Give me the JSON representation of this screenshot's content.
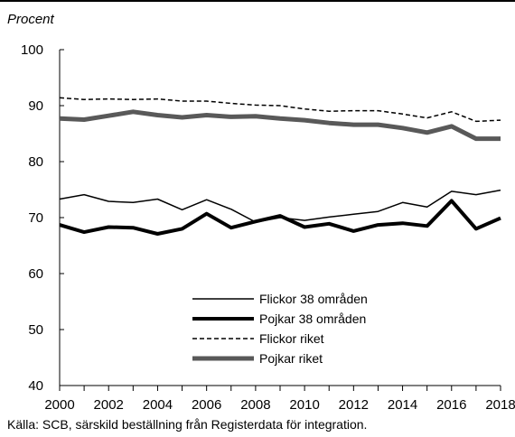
{
  "chart_data": {
    "type": "line",
    "title": "",
    "ylabel": "Procent",
    "xlabel": "",
    "ylim": [
      40,
      100
    ],
    "yticks": [
      40,
      50,
      60,
      70,
      80,
      90,
      100
    ],
    "xlim": [
      2000,
      2018
    ],
    "xticks": [
      2000,
      2002,
      2004,
      2006,
      2008,
      2010,
      2012,
      2014,
      2016,
      2018
    ],
    "x": [
      2000,
      2001,
      2002,
      2003,
      2004,
      2005,
      2006,
      2007,
      2008,
      2009,
      2010,
      2011,
      2012,
      2013,
      2014,
      2015,
      2016,
      2017,
      2018
    ],
    "legend_position": "bottom-center",
    "grid": false,
    "series": [
      {
        "name": "Flickor 38 områden",
        "style": "thin-solid",
        "color": "#000000",
        "values": [
          73.3,
          74.1,
          72.9,
          72.7,
          73.3,
          71.4,
          73.2,
          71.5,
          69.2,
          70.0,
          69.5,
          70.1,
          70.6,
          71.1,
          72.7,
          71.9,
          74.7,
          74.1,
          74.9
        ]
      },
      {
        "name": "Pojkar 38 områden",
        "style": "thick-solid",
        "color": "#000000",
        "values": [
          68.7,
          67.4,
          68.3,
          68.2,
          67.1,
          68.0,
          70.7,
          68.2,
          69.3,
          70.3,
          68.3,
          68.9,
          67.6,
          68.7,
          69.0,
          68.5,
          73.0,
          68.0,
          69.9
        ]
      },
      {
        "name": "Flickor riket",
        "style": "dashed",
        "color": "#000000",
        "values": [
          91.4,
          91.1,
          91.2,
          91.1,
          91.2,
          90.8,
          90.8,
          90.4,
          90.1,
          90.0,
          89.4,
          89.0,
          89.1,
          89.1,
          88.5,
          87.8,
          88.9,
          87.2,
          87.4
        ]
      },
      {
        "name": "Pojkar riket",
        "style": "thick-gray",
        "color": "#555555",
        "values": [
          87.7,
          87.5,
          88.2,
          88.9,
          88.3,
          87.9,
          88.3,
          88.0,
          88.1,
          87.7,
          87.4,
          86.9,
          86.6,
          86.6,
          86.0,
          85.2,
          86.3,
          84.1,
          84.1
        ]
      }
    ],
    "source": "Källa: SCB, särskild beställning från Registerdata för integration."
  }
}
